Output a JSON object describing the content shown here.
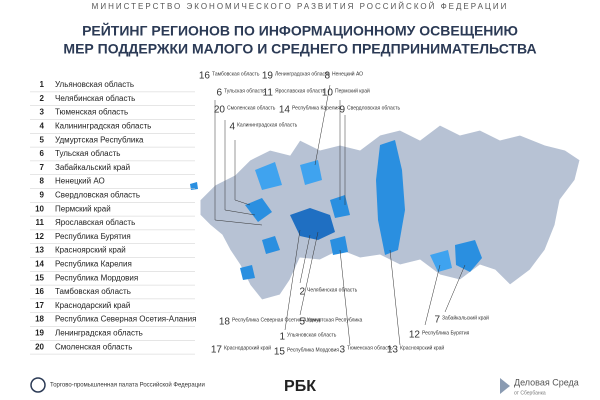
{
  "header": {
    "ministry": "МИНИСТЕРСТВО ЭКОНОМИЧЕСКОГО РАЗВИТИЯ РОССИЙСКОЙ ФЕДЕРАЦИИ",
    "title": [
      "РЕЙТИНГ РЕГИОНОВ ПО ИНФОРМАЦИОННОМУ ОСВЕЩЕНИЮ",
      "МЕР ПОДДЕРЖКИ МАЛОГО И СРЕДНЕГО ПРЕДПРИНИМАТЕЛЬСТВА"
    ]
  },
  "ranking": [
    {
      "rank": "1",
      "region": "Ульяновская область"
    },
    {
      "rank": "2",
      "region": "Челябинская область"
    },
    {
      "rank": "3",
      "region": "Тюменская область"
    },
    {
      "rank": "4",
      "region": "Калининградская область"
    },
    {
      "rank": "5",
      "region": "Удмуртская Республика"
    },
    {
      "rank": "6",
      "region": "Тульская область"
    },
    {
      "rank": "7",
      "region": "Забайкальский край"
    },
    {
      "rank": "8",
      "region": "Ненецкий АО"
    },
    {
      "rank": "9",
      "region": "Свердловская область"
    },
    {
      "rank": "10",
      "region": "Пермский край"
    },
    {
      "rank": "11",
      "region": "Ярославская область"
    },
    {
      "rank": "12",
      "region": "Республика Бурятия"
    },
    {
      "rank": "13",
      "region": "Красноярский край"
    },
    {
      "rank": "14",
      "region": "Республика Карелия"
    },
    {
      "rank": "15",
      "region": "Республика Мордовия"
    },
    {
      "rank": "16",
      "region": "Тамбовская область"
    },
    {
      "rank": "17",
      "region": "Краснодарский край"
    },
    {
      "rank": "18",
      "region": "Республика Северная Осетия-Алания"
    },
    {
      "rank": "19",
      "region": "Ленинградская область"
    },
    {
      "rank": "20",
      "region": "Смоленская область"
    }
  ],
  "map_labels": [
    {
      "rank": "16",
      "name": "Тамбовская область"
    },
    {
      "rank": "19",
      "name": "Ленинградская область"
    },
    {
      "rank": "8",
      "name": "Ненецкий АО"
    },
    {
      "rank": "6",
      "name": "Тульская область"
    },
    {
      "rank": "11",
      "name": "Ярославская область"
    },
    {
      "rank": "10",
      "name": "Пермский край"
    },
    {
      "rank": "20",
      "name": "Смоленская область"
    },
    {
      "rank": "14",
      "name": "Республика Карелия"
    },
    {
      "rank": "9",
      "name": "Свердловская область"
    },
    {
      "rank": "4",
      "name": "Калининградская область"
    },
    {
      "rank": "2",
      "name": "Челябинская область"
    },
    {
      "rank": "18",
      "name": "Республика Северная Осетия-Алания"
    },
    {
      "rank": "5",
      "name": "Удмуртская Республика"
    },
    {
      "rank": "7",
      "name": "Забайкальский край"
    },
    {
      "rank": "12",
      "name": "Республика Бурятия"
    },
    {
      "rank": "1",
      "name": "Ульяновская область"
    },
    {
      "rank": "17",
      "name": "Краснодарский край"
    },
    {
      "rank": "15",
      "name": "Республика Мордовия"
    },
    {
      "rank": "3",
      "name": "Тюменская область"
    },
    {
      "rank": "13",
      "name": "Красноярский край"
    }
  ],
  "footer": {
    "left": "Торгово-промышленная палата Российской Федерации",
    "center": "РБК",
    "right": "Деловая Среда",
    "right_sub": "от Сбербанка"
  }
}
